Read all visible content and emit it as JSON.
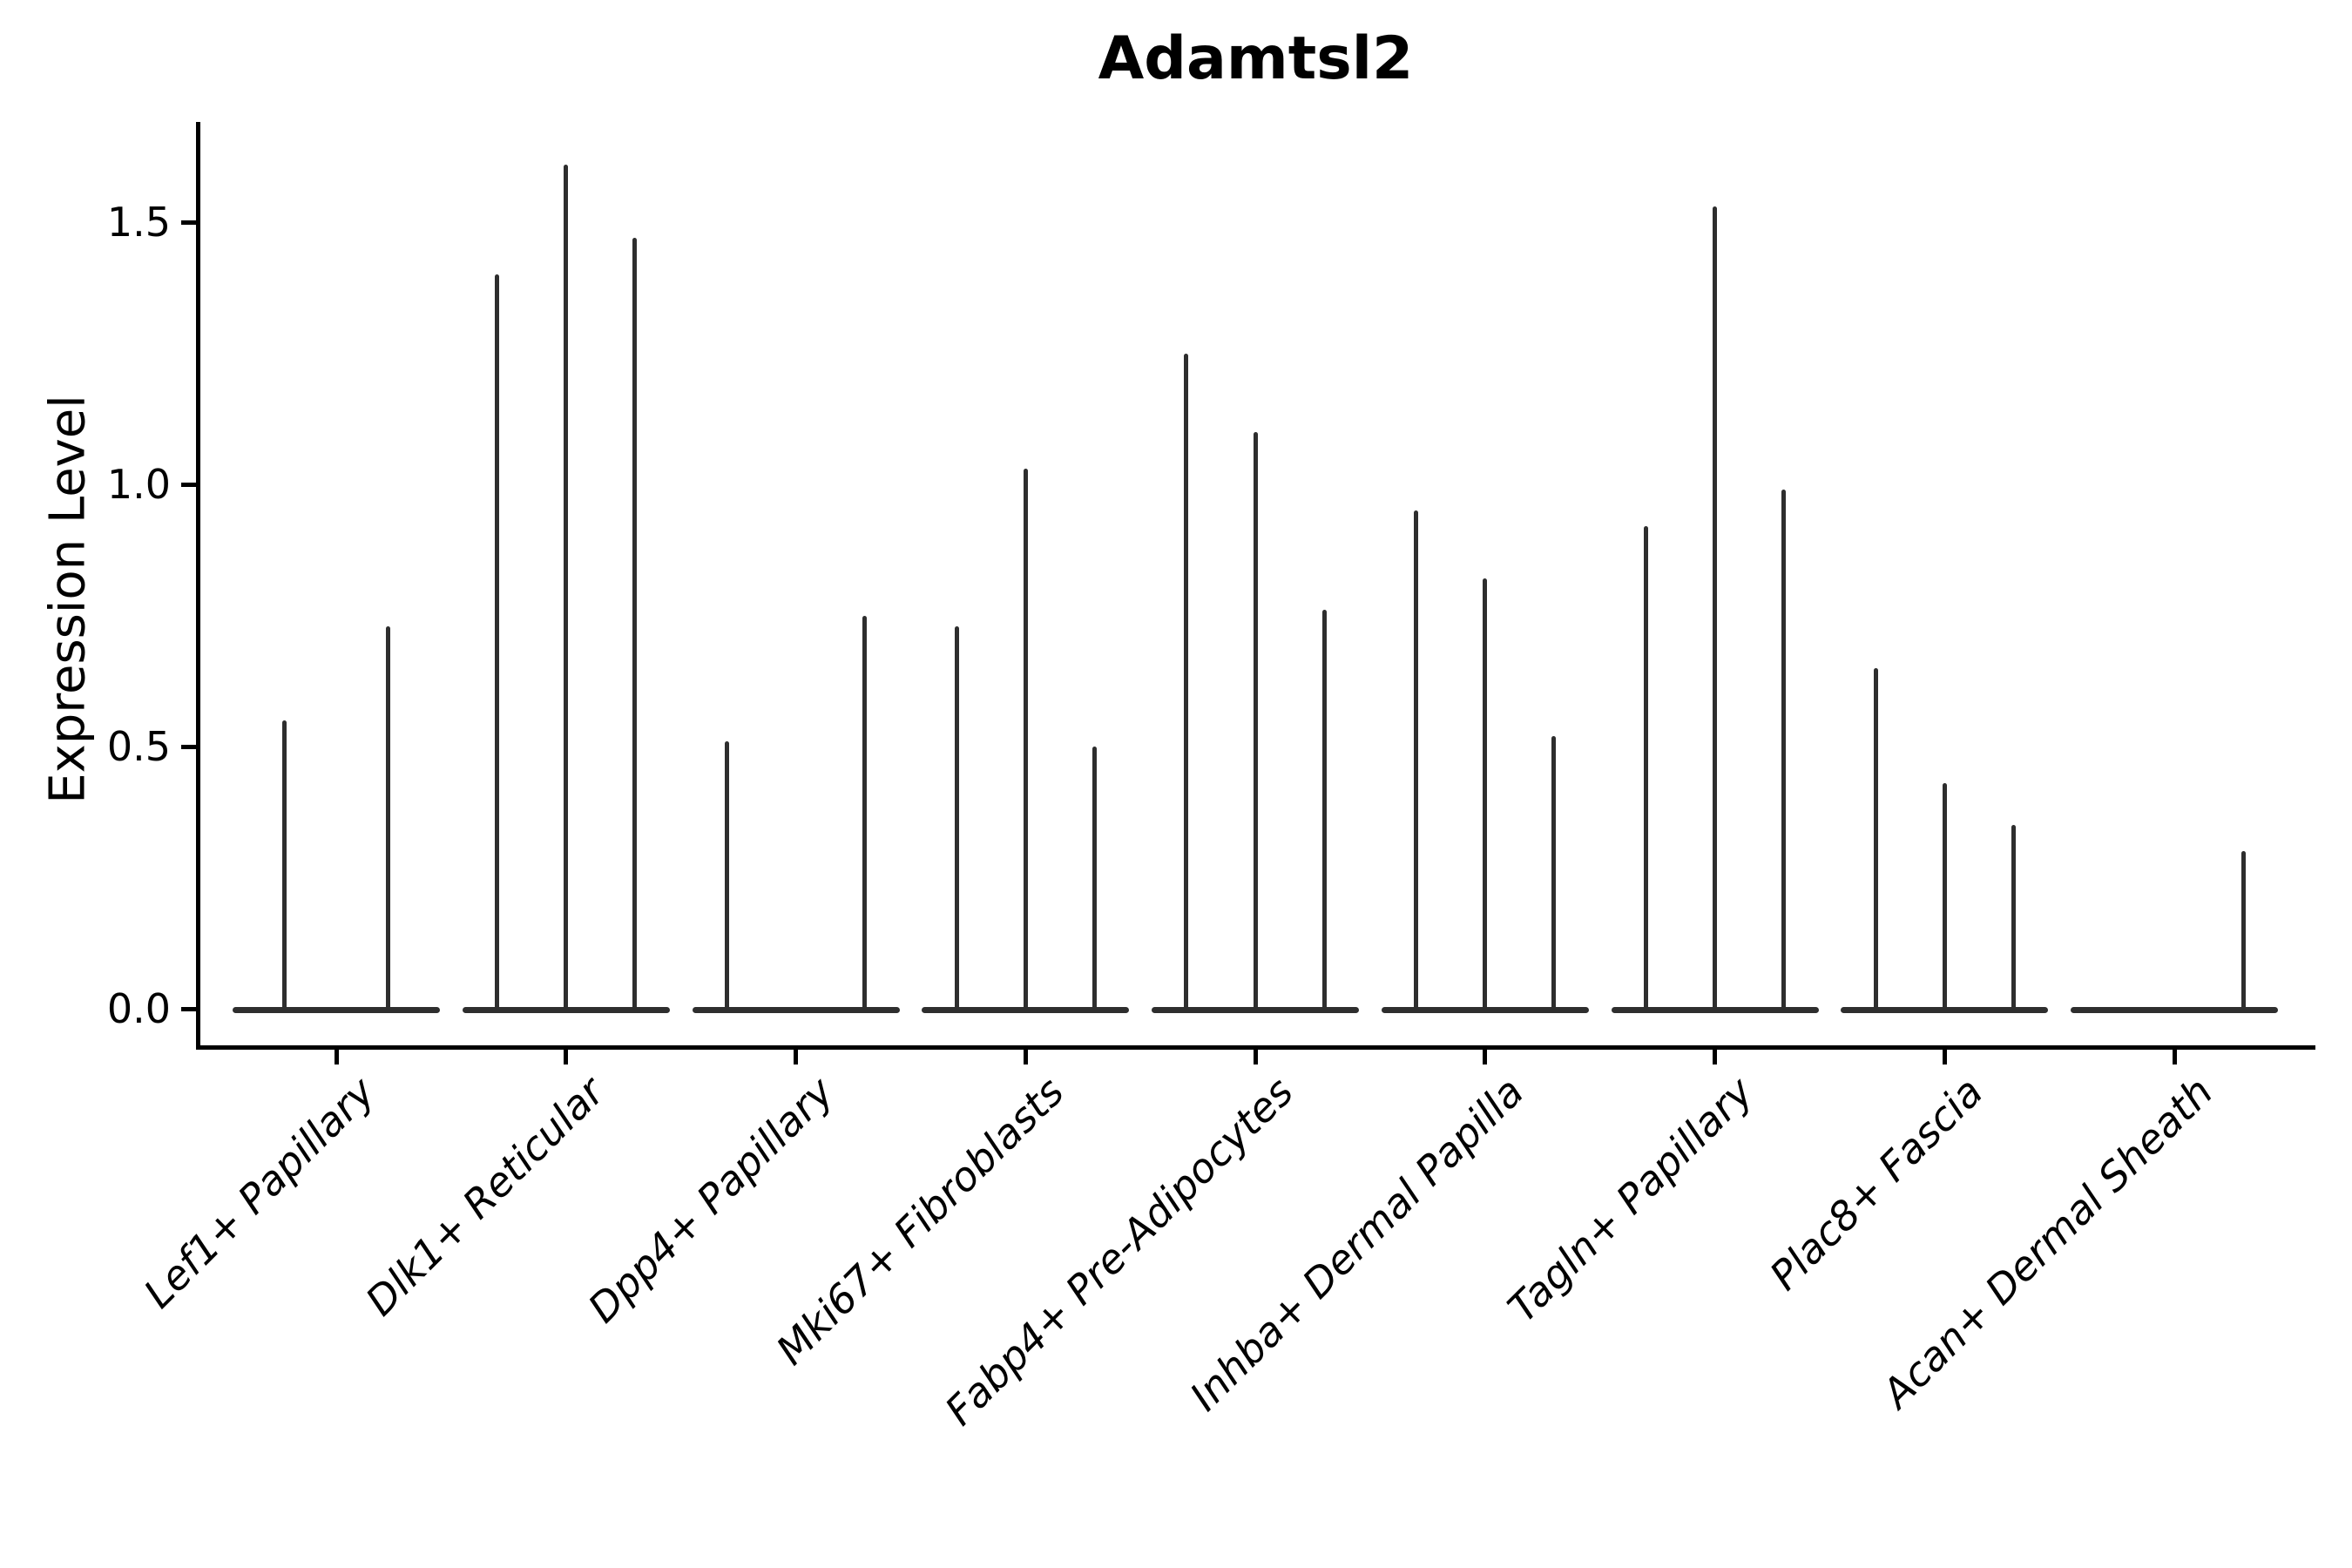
{
  "title": "Adamtsl2",
  "axes": {
    "ylabel": "Expression Level",
    "y_ticks": [
      {
        "label": "0.0",
        "value": 0.0
      },
      {
        "label": "0.5",
        "value": 0.5
      },
      {
        "label": "1.0",
        "value": 1.0
      },
      {
        "label": "1.5",
        "value": 1.5
      }
    ]
  },
  "chart_data": {
    "type": "violin",
    "title": "Adamtsl2",
    "xlabel": "",
    "ylabel": "Expression Level",
    "ylim": [
      0,
      1.69
    ],
    "y_ticks": [
      0.0,
      0.5,
      1.0,
      1.5
    ],
    "grid": false,
    "legend": "none",
    "style_note": "Seurat-style stacked violin; each violin is needle-thin: maximum density collapsed at 0 (wide flat strip on the baseline) with a thin vertical spike reaching the group maximum expression; black outlines on white background",
    "categories": [
      "Lef1+ Papillary",
      "Dlk1+ Reticular",
      "Dpp4+ Papillary",
      "Mki67+ Fibroblasts",
      "Fabp4+ Pre-Adipocytes",
      "Inhba+ Dermal Papilla",
      "Tagln+ Papillary",
      "Plac8+ Fascia",
      "Acan+ Dermal Sheath"
    ],
    "groups": [
      {
        "category": "Lef1+ Papillary",
        "violin_maxima": [
          0.55,
          0.73
        ]
      },
      {
        "category": "Dlk1+ Reticular",
        "violin_maxima": [
          1.4,
          1.61,
          1.47
        ]
      },
      {
        "category": "Dpp4+ Papillary",
        "violin_maxima": [
          0.51,
          0.0,
          0.75
        ]
      },
      {
        "category": "Mki67+ Fibroblasts",
        "violin_maxima": [
          0.73,
          1.03,
          0.5
        ]
      },
      {
        "category": "Fabp4+ Pre-Adipocytes",
        "violin_maxima": [
          1.25,
          1.1,
          0.76
        ]
      },
      {
        "category": "Inhba+ Dermal Papilla",
        "violin_maxima": [
          0.95,
          0.82,
          0.52
        ]
      },
      {
        "category": "Tagln+ Papillary",
        "violin_maxima": [
          0.92,
          1.53,
          0.99
        ]
      },
      {
        "category": "Plac8+ Fascia",
        "violin_maxima": [
          0.65,
          0.43,
          0.35
        ]
      },
      {
        "category": "Acan+ Dermal Sheath",
        "violin_maxima": [
          0.0,
          0.0,
          0.3
        ]
      }
    ],
    "colors": {
      "violin_stroke": "#2e2e2e",
      "axis": "#000000",
      "background": "#ffffff",
      "text": "#000000"
    }
  }
}
